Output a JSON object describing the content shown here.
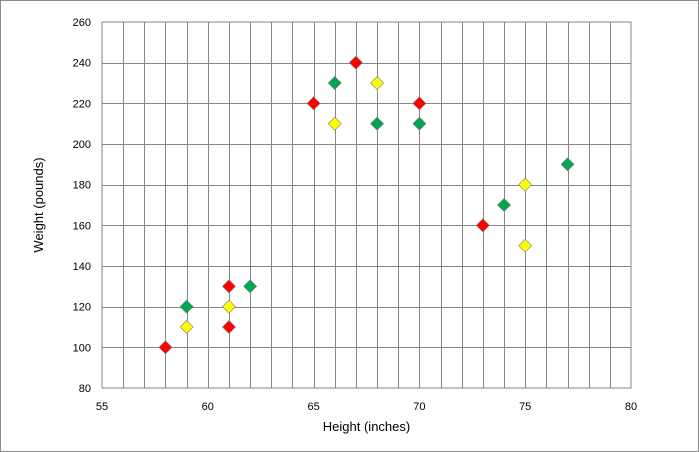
{
  "chart_data": {
    "type": "scatter",
    "title": "",
    "xlabel": "Height (inches)",
    "ylabel": "Weight (pounds)",
    "xlim": [
      55,
      80
    ],
    "ylim": [
      80,
      260
    ],
    "x_ticks": [
      55,
      60,
      65,
      70,
      75,
      80
    ],
    "x_tick_labels": [
      "55",
      "60",
      "65",
      "70",
      "75",
      "80"
    ],
    "y_ticks": [
      80,
      100,
      120,
      140,
      160,
      180,
      200,
      220,
      240,
      260
    ],
    "y_tick_labels": [
      "80",
      "100",
      "120",
      "140",
      "160",
      "180",
      "200",
      "220",
      "240",
      "260"
    ],
    "grid": true,
    "legend": "none",
    "marker": "diamond",
    "series": [
      {
        "color": "#ff0000",
        "points": [
          [
            58,
            100
          ],
          [
            61,
            110
          ],
          [
            61,
            130
          ],
          [
            65,
            220
          ],
          [
            67,
            240
          ],
          [
            70,
            220
          ],
          [
            73,
            160
          ]
        ]
      },
      {
        "color": "#00a650",
        "points": [
          [
            59,
            120
          ],
          [
            62,
            130
          ],
          [
            66,
            230
          ],
          [
            68,
            210
          ],
          [
            70,
            210
          ],
          [
            74,
            170
          ],
          [
            77,
            190
          ]
        ]
      },
      {
        "color": "#ffff00",
        "points": [
          [
            59,
            110
          ],
          [
            61,
            120
          ],
          [
            66,
            210
          ],
          [
            68,
            230
          ],
          [
            75,
            180
          ],
          [
            75,
            150
          ]
        ]
      }
    ]
  }
}
